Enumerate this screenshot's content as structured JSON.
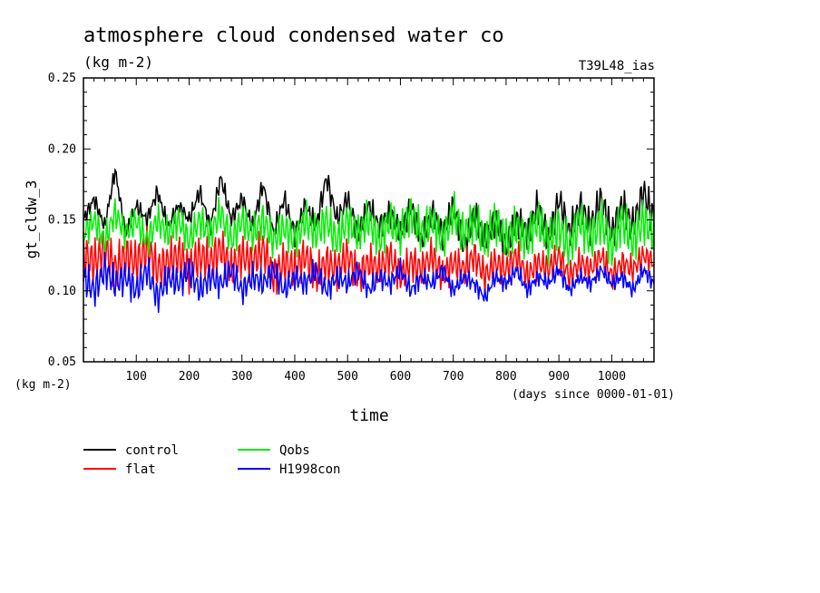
{
  "chart_data": {
    "type": "line",
    "title": "atmosphere cloud condensed water co",
    "subtitle": "(kg m-2)",
    "run_label": "T39L48_ias",
    "ylabel": "gt_cldw_3",
    "yunit": "(kg m-2)",
    "xlabel": "time",
    "xunit": "(days since 0000-01-01)",
    "xlim": [
      0,
      1080
    ],
    "ylim": [
      0.05,
      0.25
    ],
    "xticks": [
      100,
      200,
      300,
      400,
      500,
      600,
      700,
      800,
      900,
      1000
    ],
    "xtick_labels": [
      "100",
      "200",
      "300",
      "400",
      "500",
      "600",
      "700",
      "800",
      "900",
      "1000"
    ],
    "yticks": [
      0.05,
      0.1,
      0.15,
      0.2,
      0.25
    ],
    "ytick_labels": [
      "0.05",
      "0.10",
      "0.15",
      "0.20",
      "0.25"
    ],
    "grid": false,
    "legend_position": "below-left",
    "series": [
      {
        "name": "control",
        "color": "#000000",
        "x": [
          0,
          20,
          40,
          60,
          80,
          100,
          120,
          140,
          160,
          180,
          200,
          220,
          240,
          260,
          280,
          300,
          320,
          340,
          360,
          380,
          400,
          420,
          440,
          460,
          480,
          500,
          520,
          540,
          560,
          580,
          600,
          620,
          640,
          660,
          680,
          700,
          720,
          740,
          760,
          780,
          800,
          820,
          840,
          860,
          880,
          900,
          920,
          940,
          960,
          980,
          1000,
          1020,
          1040,
          1060,
          1080
        ],
        "values": [
          0.15,
          0.165,
          0.145,
          0.185,
          0.14,
          0.16,
          0.15,
          0.17,
          0.145,
          0.16,
          0.15,
          0.17,
          0.145,
          0.18,
          0.15,
          0.165,
          0.145,
          0.175,
          0.14,
          0.165,
          0.14,
          0.16,
          0.145,
          0.18,
          0.15,
          0.165,
          0.14,
          0.16,
          0.145,
          0.155,
          0.14,
          0.16,
          0.135,
          0.155,
          0.14,
          0.16,
          0.13,
          0.155,
          0.135,
          0.15,
          0.13,
          0.15,
          0.14,
          0.16,
          0.135,
          0.165,
          0.14,
          0.16,
          0.145,
          0.165,
          0.14,
          0.16,
          0.145,
          0.17,
          0.15
        ]
      },
      {
        "name": "flat",
        "color": "#ff0000",
        "x": [
          0,
          20,
          40,
          60,
          80,
          100,
          120,
          140,
          160,
          180,
          200,
          220,
          240,
          260,
          280,
          300,
          320,
          340,
          360,
          380,
          400,
          420,
          440,
          460,
          480,
          500,
          520,
          540,
          560,
          580,
          600,
          620,
          640,
          660,
          680,
          700,
          720,
          740,
          760,
          780,
          800,
          820,
          840,
          860,
          880,
          900,
          920,
          940,
          960,
          980,
          1000,
          1020,
          1040,
          1060,
          1080
        ],
        "values": [
          0.125,
          0.12,
          0.13,
          0.115,
          0.125,
          0.12,
          0.13,
          0.115,
          0.12,
          0.125,
          0.115,
          0.125,
          0.12,
          0.13,
          0.115,
          0.125,
          0.12,
          0.13,
          0.11,
          0.12,
          0.115,
          0.125,
          0.11,
          0.12,
          0.115,
          0.125,
          0.11,
          0.12,
          0.115,
          0.125,
          0.11,
          0.12,
          0.115,
          0.125,
          0.11,
          0.12,
          0.115,
          0.125,
          0.11,
          0.12,
          0.115,
          0.125,
          0.11,
          0.12,
          0.115,
          0.125,
          0.11,
          0.12,
          0.115,
          0.125,
          0.11,
          0.12,
          0.115,
          0.125,
          0.12
        ]
      },
      {
        "name": "Qobs",
        "color": "#00ee00",
        "x": [
          0,
          20,
          40,
          60,
          80,
          100,
          120,
          140,
          160,
          180,
          200,
          220,
          240,
          260,
          280,
          300,
          320,
          340,
          360,
          380,
          400,
          420,
          440,
          460,
          480,
          500,
          520,
          540,
          560,
          580,
          600,
          620,
          640,
          660,
          680,
          700,
          720,
          740,
          760,
          780,
          800,
          820,
          840,
          860,
          880,
          900,
          920,
          940,
          960,
          980,
          1000,
          1020,
          1040,
          1060,
          1080
        ],
        "values": [
          0.14,
          0.15,
          0.135,
          0.155,
          0.14,
          0.15,
          0.135,
          0.15,
          0.14,
          0.15,
          0.135,
          0.15,
          0.14,
          0.155,
          0.135,
          0.15,
          0.14,
          0.15,
          0.135,
          0.145,
          0.135,
          0.15,
          0.14,
          0.15,
          0.135,
          0.15,
          0.14,
          0.15,
          0.135,
          0.15,
          0.14,
          0.155,
          0.14,
          0.15,
          0.135,
          0.155,
          0.14,
          0.15,
          0.135,
          0.15,
          0.135,
          0.145,
          0.135,
          0.15,
          0.135,
          0.145,
          0.13,
          0.15,
          0.135,
          0.15,
          0.13,
          0.15,
          0.135,
          0.15,
          0.14
        ]
      },
      {
        "name": "H1998con",
        "color": "#0000ff",
        "x": [
          0,
          20,
          40,
          60,
          80,
          100,
          120,
          140,
          160,
          180,
          200,
          220,
          240,
          260,
          280,
          300,
          320,
          340,
          360,
          380,
          400,
          420,
          440,
          460,
          480,
          500,
          520,
          540,
          560,
          580,
          600,
          620,
          640,
          660,
          680,
          700,
          720,
          740,
          760,
          780,
          800,
          820,
          840,
          860,
          880,
          900,
          920,
          940,
          960,
          980,
          1000,
          1020,
          1040,
          1060,
          1080
        ],
        "values": [
          0.11,
          0.1,
          0.115,
          0.105,
          0.11,
          0.1,
          0.115,
          0.095,
          0.11,
          0.105,
          0.115,
          0.1,
          0.11,
          0.105,
          0.115,
          0.1,
          0.11,
          0.105,
          0.115,
          0.1,
          0.11,
          0.105,
          0.115,
          0.1,
          0.11,
          0.105,
          0.115,
          0.1,
          0.11,
          0.105,
          0.115,
          0.1,
          0.11,
          0.105,
          0.115,
          0.1,
          0.11,
          0.105,
          0.095,
          0.11,
          0.105,
          0.115,
          0.1,
          0.11,
          0.105,
          0.115,
          0.1,
          0.11,
          0.105,
          0.115,
          0.105,
          0.11,
          0.1,
          0.115,
          0.105
        ]
      }
    ]
  }
}
